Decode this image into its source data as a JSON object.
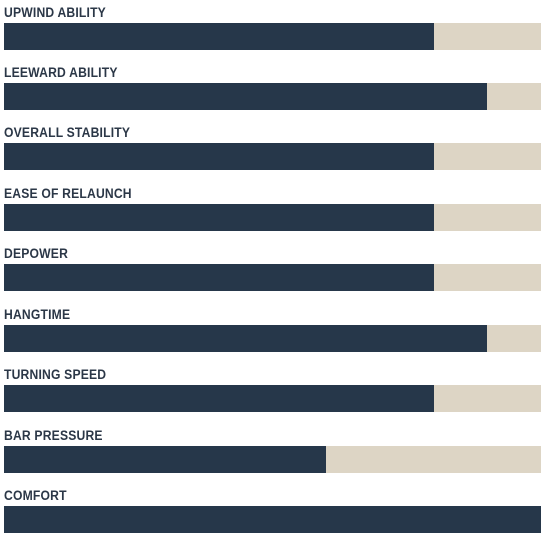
{
  "colors": {
    "fill": "#26374a",
    "track": "#ddd5c5",
    "label": "#2b3747"
  },
  "ratings": [
    {
      "label": "UPWIND ABILITY",
      "level": 0.8
    },
    {
      "label": "LEEWARD ABILITY",
      "level": 0.9
    },
    {
      "label": "OVERALL STABILITY",
      "level": 0.8
    },
    {
      "label": "EASE OF RELAUNCH",
      "level": 0.8
    },
    {
      "label": "DEPOWER",
      "level": 0.8
    },
    {
      "label": "HANGTIME",
      "level": 0.9
    },
    {
      "label": "TURNING SPEED",
      "level": 0.8
    },
    {
      "label": "BAR PRESSURE",
      "level": 0.6
    },
    {
      "label": "COMFORT",
      "level": 1.0
    }
  ]
}
